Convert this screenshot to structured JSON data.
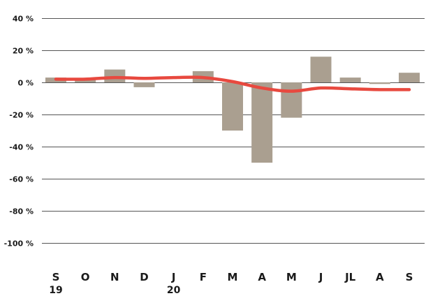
{
  "chart_data": {
    "type": "bar",
    "categories": [
      "S",
      "O",
      "N",
      "D",
      "J",
      "F",
      "M",
      "A",
      "M",
      "J",
      "JL",
      "A",
      "S"
    ],
    "year_markers": [
      {
        "category_index": 0,
        "label": "19"
      },
      {
        "category_index": 4,
        "label": "20"
      }
    ],
    "series": [
      {
        "kind": "bar",
        "values": [
          3,
          2,
          8,
          -3,
          0,
          7,
          -30,
          -50,
          -22,
          16,
          3,
          -1,
          6
        ]
      },
      {
        "kind": "line",
        "values": [
          2,
          2,
          3,
          2.5,
          3,
          3,
          0.5,
          -3.5,
          -5.5,
          -3.5,
          -4,
          -4.5,
          -4.5
        ]
      }
    ],
    "yticks": [
      {
        "value": 40,
        "label": "40 %"
      },
      {
        "value": 20,
        "label": "20 %"
      },
      {
        "value": 0,
        "label": "0 %"
      },
      {
        "value": -20,
        "label": "-20 %"
      },
      {
        "value": -40,
        "label": "-40 %"
      },
      {
        "value": -60,
        "label": "-60 %"
      },
      {
        "value": -80,
        "label": "-80 %"
      },
      {
        "value": -100,
        "label": "-100 %"
      }
    ],
    "ylim": [
      -100,
      40
    ],
    "grid": true,
    "legend": "none",
    "colors": {
      "bar": "#aa9f90",
      "line": "#e8493f",
      "grid": "#555555",
      "text": "#1a1a1a"
    }
  }
}
